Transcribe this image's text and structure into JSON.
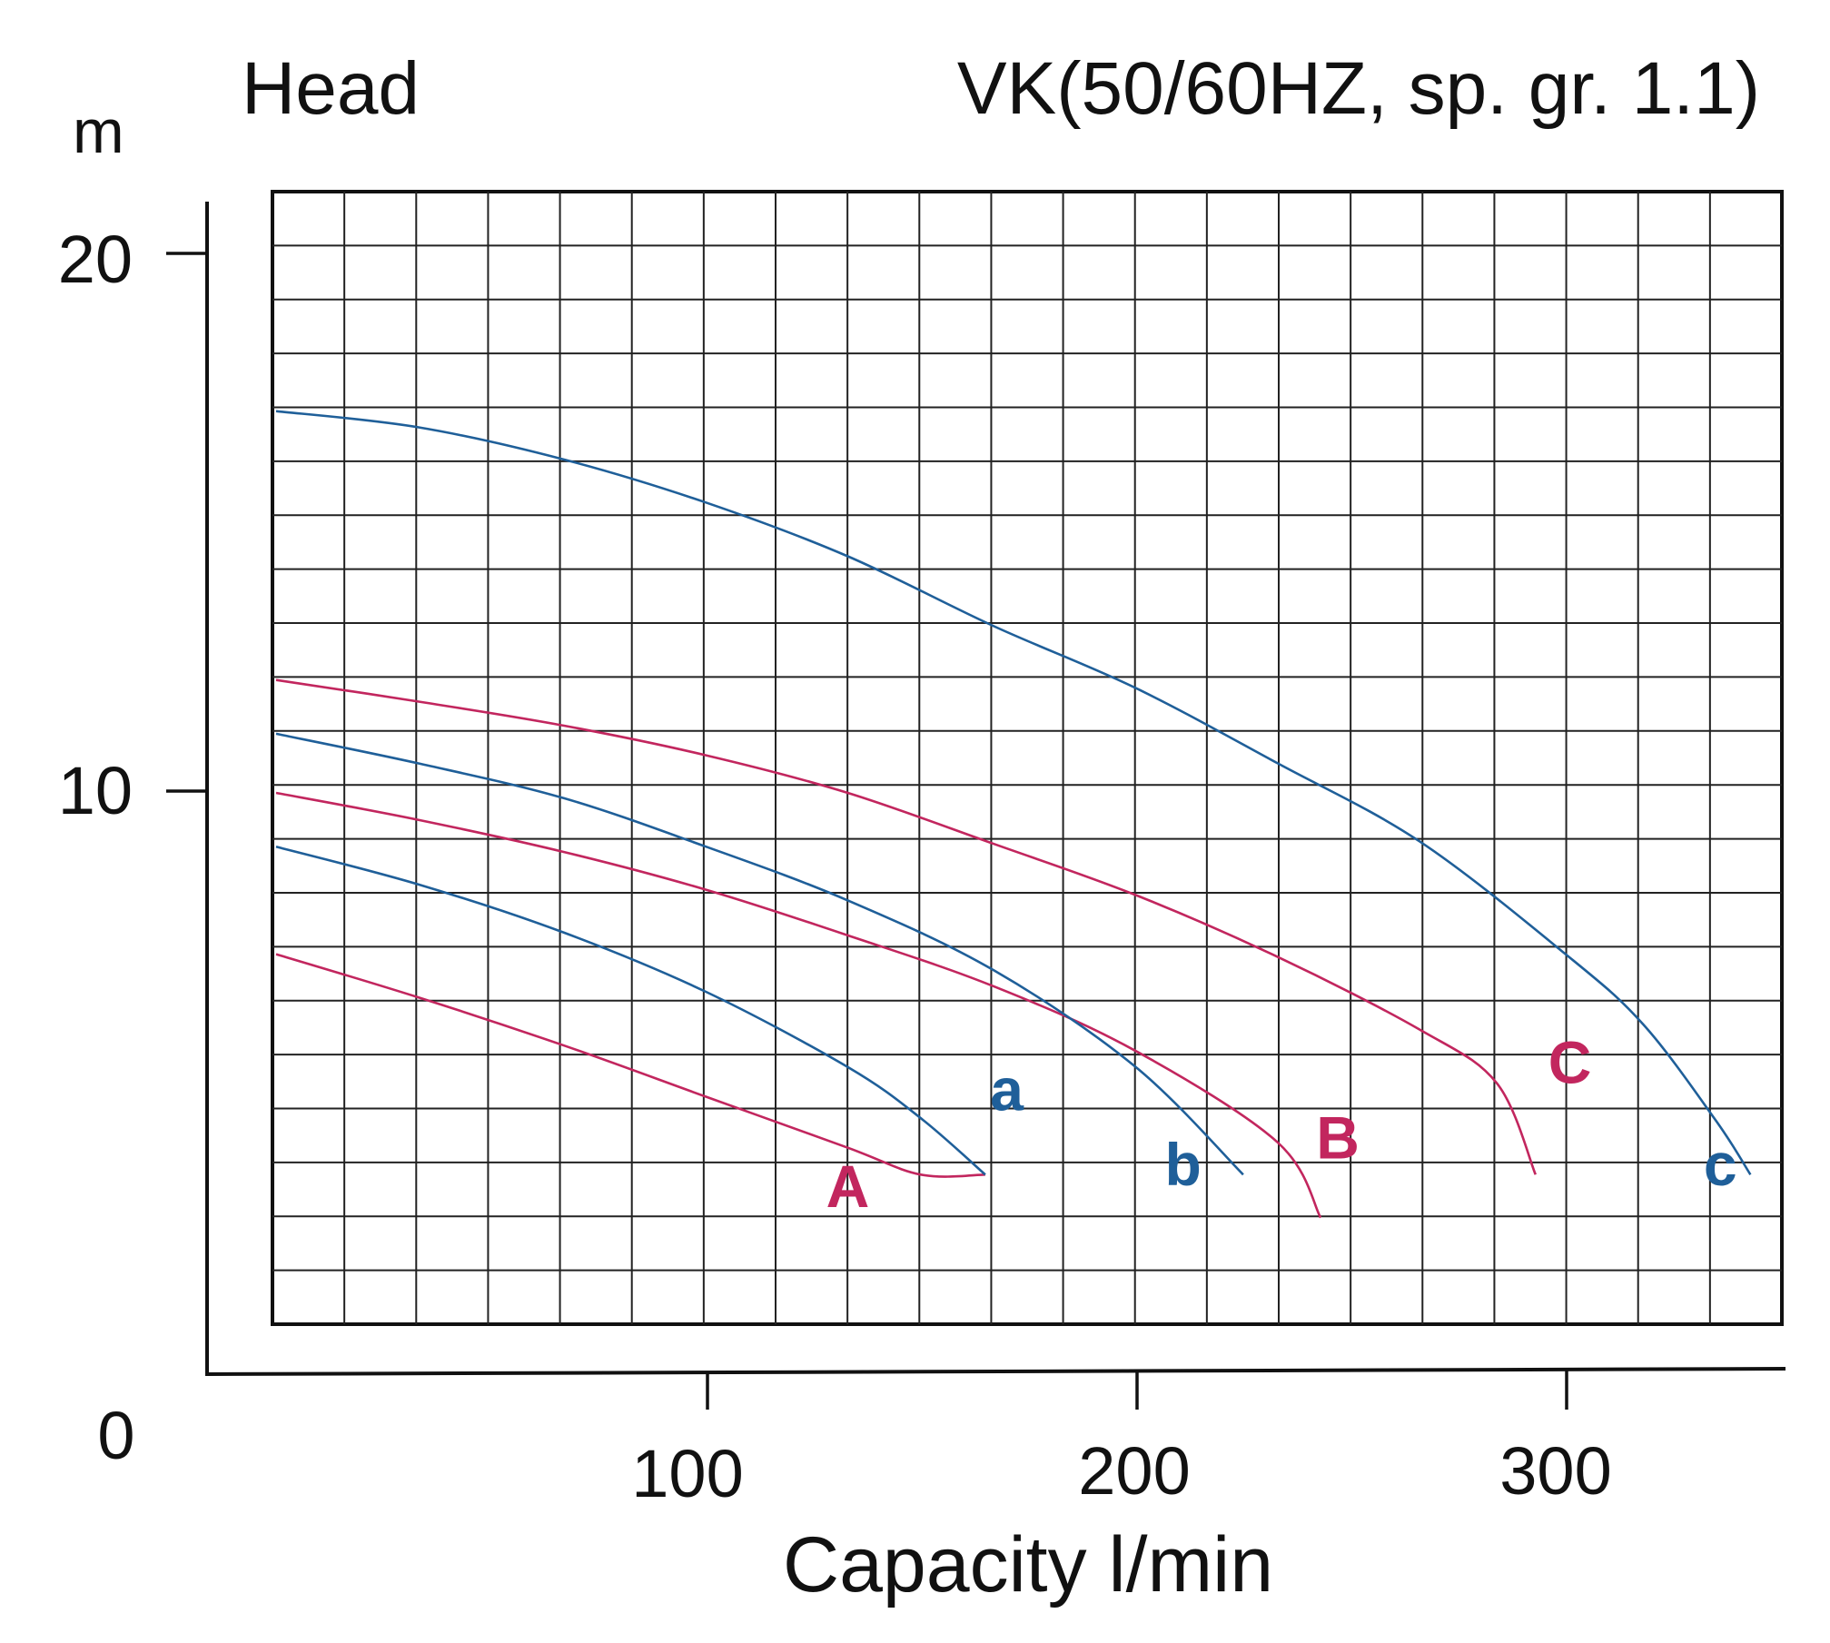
{
  "chart_data": {
    "type": "line",
    "title": "VK(50/60HZ, sp. gr. 1.1)",
    "ylabel": "Head",
    "yunit": "m",
    "xlabel": "Capacity l/min",
    "xlim": [
      0,
      355
    ],
    "ylim": [
      0,
      20
    ],
    "x_ticks": [
      "100",
      "200",
      "300"
    ],
    "y_ticks": [
      "20",
      "10"
    ],
    "origin_label": "0",
    "grid": true,
    "series": [
      {
        "name": "A",
        "color": "#c2265e",
        "x": [
          0,
          33,
          67,
          100,
          133,
          150,
          165
        ],
        "y": [
          8.0,
          7.2,
          6.3,
          5.35,
          4.4,
          3.9,
          3.9
        ]
      },
      {
        "name": "a",
        "color": "#1f5f99",
        "x": [
          0,
          33,
          67,
          100,
          133,
          150,
          165
        ],
        "y": [
          10.0,
          9.3,
          8.4,
          7.3,
          5.9,
          4.95,
          3.9
        ]
      },
      {
        "name": "B",
        "color": "#c2265e",
        "x": [
          0,
          33,
          67,
          100,
          133,
          167,
          200,
          233,
          243
        ],
        "y": [
          11.0,
          10.5,
          9.9,
          9.2,
          8.35,
          7.4,
          6.2,
          4.5,
          3.1
        ]
      },
      {
        "name": "b",
        "color": "#1f5f99",
        "x": [
          0,
          33,
          67,
          100,
          133,
          167,
          200,
          225
        ],
        "y": [
          12.1,
          11.55,
          10.9,
          10.0,
          9.0,
          7.7,
          5.9,
          3.9
        ]
      },
      {
        "name": "C",
        "color": "#c2265e",
        "x": [
          0,
          33,
          67,
          100,
          133,
          167,
          200,
          233,
          266,
          284,
          293
        ],
        "y": [
          13.1,
          12.7,
          12.25,
          11.7,
          11.0,
          10.05,
          9.1,
          7.95,
          6.6,
          5.6,
          3.9
        ]
      },
      {
        "name": "c",
        "color": "#1f5f99",
        "x": [
          0,
          33,
          67,
          100,
          133,
          167,
          200,
          233,
          266,
          300,
          318,
          335,
          343
        ],
        "y": [
          18.1,
          17.8,
          17.2,
          16.4,
          15.4,
          14.1,
          12.95,
          11.55,
          10.1,
          8.0,
          6.7,
          4.9,
          3.9
        ]
      }
    ],
    "series_label_positions": {
      "A": [
        133,
        3.3
      ],
      "a": [
        170,
        5.1
      ],
      "B": [
        247,
        4.2
      ],
      "b": [
        211,
        3.7
      ],
      "C": [
        301,
        5.6
      ],
      "c": [
        336,
        3.7
      ]
    }
  }
}
